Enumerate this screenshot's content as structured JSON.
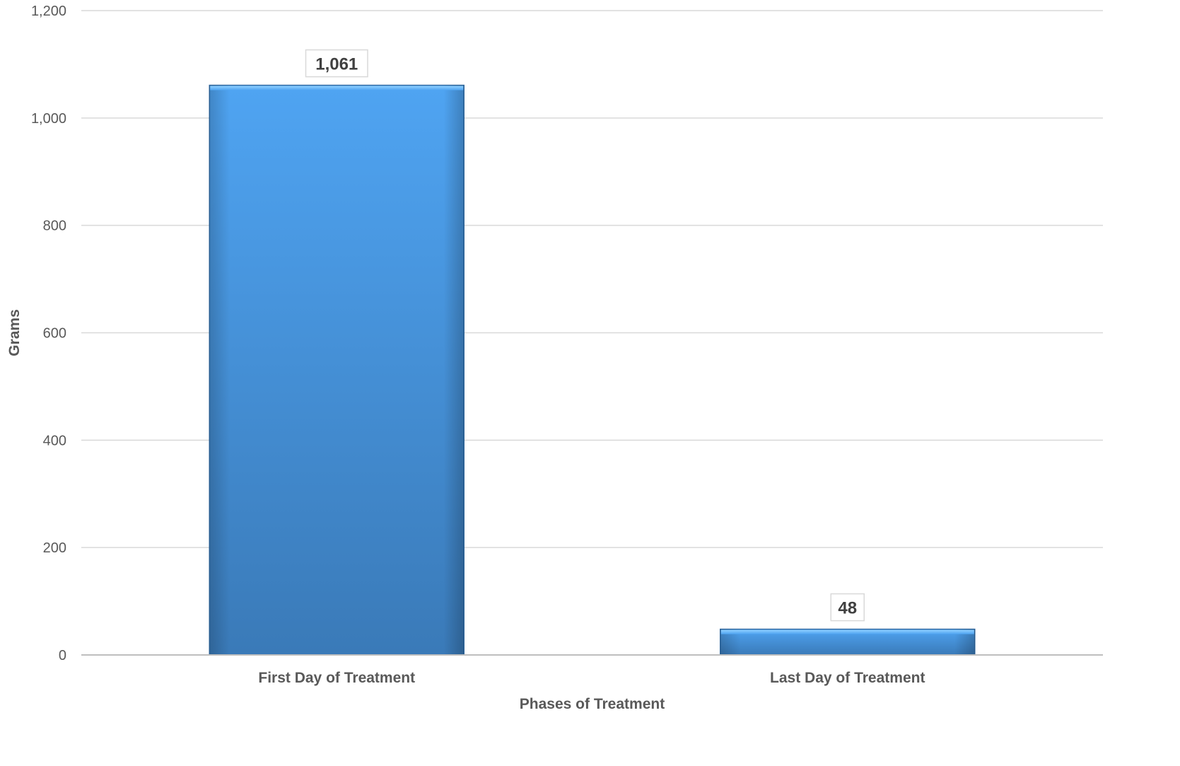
{
  "chart_data": {
    "type": "bar",
    "categories": [
      "First Day of Treatment",
      "Last Day of Treatment"
    ],
    "values": [
      1061,
      48
    ],
    "value_labels": [
      "1,061",
      "48"
    ],
    "title": "",
    "xlabel": "Phases of Treatment",
    "ylabel": "Grams",
    "ylim": [
      0,
      1200
    ],
    "yticks": [
      0,
      200,
      400,
      600,
      800,
      1000,
      1200
    ],
    "ytick_labels": [
      "0",
      "200",
      "400",
      "600",
      "800",
      "1,000",
      "1,200"
    ],
    "grid": true,
    "legend": "none",
    "bar_color": "#4a9be8",
    "bar_color_dark": "#3a78b8"
  }
}
